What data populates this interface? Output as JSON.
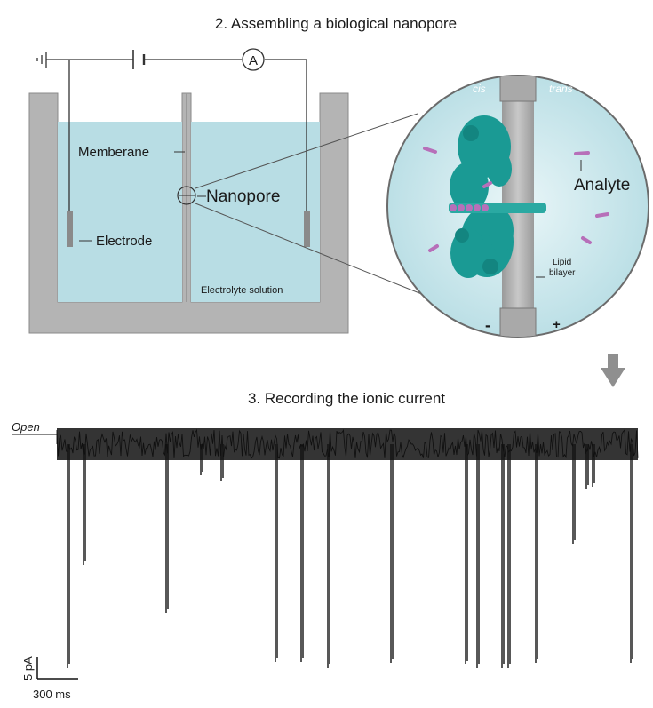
{
  "section2": {
    "title": "2. Assembling a biological nanopore",
    "ammeter_symbol": "A",
    "labels": {
      "membrane": "Memberane",
      "nanopore": "Nanopore",
      "electrode": "Electrode",
      "electrolyte": "Electrolyte solution"
    },
    "inset": {
      "cis": "cis",
      "trans": "trans",
      "analyte": "Analyte",
      "lipid": "Lipid",
      "bilayer": "bilayer",
      "minus": "-",
      "plus": "+"
    }
  },
  "section3": {
    "title": "3. Recording the ionic current",
    "open_label": "Open",
    "scale_y": "5 pA",
    "scale_x": "300 ms"
  },
  "colors": {
    "solution": "#b8dde4",
    "tank": "#b4b4b4",
    "protein": "#1a9a94",
    "analyte": "#b76fb9",
    "trace": "#111111"
  },
  "icons": [
    "battery-icon",
    "ground-icon",
    "ammeter-icon",
    "arrow-down-icon"
  ]
}
